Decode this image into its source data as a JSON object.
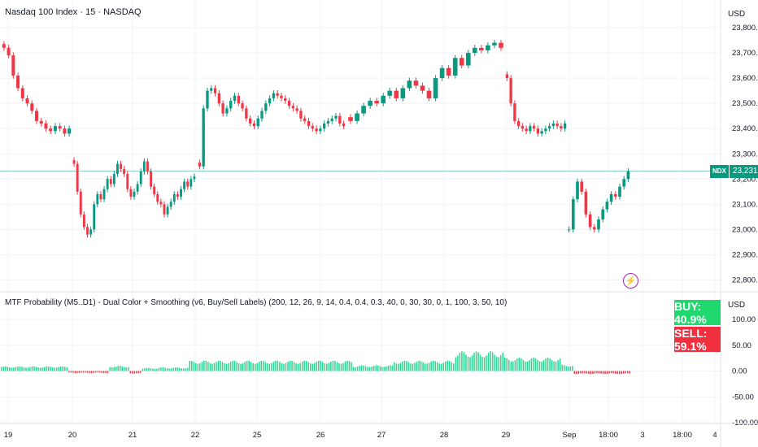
{
  "header": {
    "title": "Nasdaq 100 Index · 15 · NASDAQ",
    "currency": "USD"
  },
  "indicator": {
    "title": "MTF Probability (M5..D1) - Dual Color + Smoothing (v6, Buy/Sell Labels) (200, 12, 26, 9, 14, 0.4, 0.4, 0.3, 40, 0, 30, 30, 0, 1, 100, 3, 50, 10)",
    "currency": "USD",
    "buy_label": "BUY: 40.9%",
    "sell_label": "SELL: 59.1%"
  },
  "price_tag": {
    "symbol": "NDX",
    "value": "23,231.11"
  },
  "colors": {
    "up": "#089981",
    "down": "#f23645",
    "hist_pos": "#26d98f",
    "hist_neg": "#f23645",
    "last_price_line": "#089981"
  },
  "icons": {
    "alert": "lightning-bolt-icon"
  },
  "chart_data": [
    {
      "type": "candlestick",
      "title": "Nasdaq 100 Index · 15 · NASDAQ",
      "ylim": [
        22750,
        23850
      ],
      "y_ticks": [
        "23,800.00",
        "23,700.00",
        "23,600.00",
        "23,500.00",
        "23,400.00",
        "23,300.00",
        "23,200.00",
        "23,100.00",
        "23,000.00",
        "22,900.00",
        "22,800.00"
      ],
      "y_tick_values": [
        23800,
        23700,
        23600,
        23500,
        23400,
        23300,
        23200,
        23100,
        23000,
        22900,
        22800
      ],
      "x_ticks": [
        "19",
        "20",
        "21",
        "22",
        "25",
        "26",
        "27",
        "28",
        "29",
        "Sep",
        "18:00",
        "3",
        "18:00",
        "4"
      ],
      "last_price": 23231.11,
      "segments": [
        {
          "day": "19",
          "points": [
            23720,
            23690,
            23610,
            23560,
            23520,
            23500,
            23470,
            23430,
            23420,
            23400,
            23390,
            23410,
            23400,
            23380,
            23400
          ]
        },
        {
          "day": "20",
          "points": [
            23260,
            23150,
            23060,
            23010,
            22980,
            23000,
            23100,
            23140,
            23120,
            23160,
            23200,
            23180,
            23220,
            23260,
            23240,
            23220,
            23160,
            23130,
            23150,
            23180,
            23230,
            23270,
            23230,
            23170,
            23140,
            23110,
            23100,
            23060,
            23090,
            23110,
            23140,
            23130,
            23160,
            23190,
            23170,
            23200,
            23210
          ]
        },
        {
          "day": "22",
          "points": [
            23250,
            23480,
            23550,
            23560,
            23540,
            23500,
            23460,
            23480,
            23510,
            23530,
            23500,
            23480,
            23440,
            23420,
            23410,
            23440,
            23470,
            23500,
            23520,
            23540,
            23530,
            23520,
            23510,
            23490,
            23480,
            23470,
            23440,
            23430,
            23410,
            23400,
            23390,
            23400,
            23420,
            23430,
            23440,
            23450,
            23420,
            23410
          ]
        },
        {
          "day": "27",
          "points": [
            23430,
            23460,
            23490,
            23510,
            23500,
            23530,
            23550,
            23520,
            23560,
            23590,
            23570,
            23550,
            23520,
            23600,
            23640,
            23610,
            23680,
            23650,
            23700,
            23720,
            23710,
            23730,
            23740,
            23720
          ]
        },
        {
          "day": "29",
          "points": [
            23600,
            23500,
            23430,
            23410,
            23400,
            23390,
            23410,
            23400,
            23380,
            23390,
            23400,
            23410,
            23420,
            23410,
            23400,
            23420
          ]
        },
        {
          "day": "Sep",
          "points": [
            23000,
            23120,
            23190,
            23150,
            23060,
            23010,
            23000,
            23040,
            23080,
            23110,
            23140,
            23130,
            23170,
            23200,
            23231.11
          ]
        }
      ]
    },
    {
      "type": "bar",
      "title": "MTF Probability (M5..D1) - Dual Color + Smoothing (v6, Buy/Sell Labels)",
      "ylim": [
        -100,
        100
      ],
      "y_ticks": [
        "100.00",
        "50.00",
        "0.00",
        "-50.00",
        "-100.00"
      ],
      "y_tick_values": [
        100,
        50,
        0,
        -50,
        -100
      ],
      "segments": [
        {
          "sign": "pos",
          "count": 33,
          "level": 9
        },
        {
          "sign": "neg",
          "count": 20,
          "level": -4
        },
        {
          "sign": "pos",
          "count": 10,
          "level": 10
        },
        {
          "sign": "neg",
          "count": 6,
          "level": -5
        },
        {
          "sign": "pos",
          "count": 8,
          "level": 6
        },
        {
          "sign": "pos",
          "count": 15,
          "level": 7
        },
        {
          "sign": "pos",
          "count": 80,
          "level": 20
        },
        {
          "sign": "pos",
          "count": 20,
          "level": 11
        },
        {
          "sign": "pos",
          "count": 30,
          "level": 20
        },
        {
          "sign": "pos",
          "count": 24,
          "level": 38
        },
        {
          "sign": "pos",
          "count": 28,
          "level": 26
        },
        {
          "sign": "pos",
          "count": 6,
          "level": 12
        },
        {
          "sign": "neg",
          "count": 28,
          "level": -6
        }
      ],
      "buy_pct": 40.9,
      "sell_pct": 59.1
    }
  ]
}
